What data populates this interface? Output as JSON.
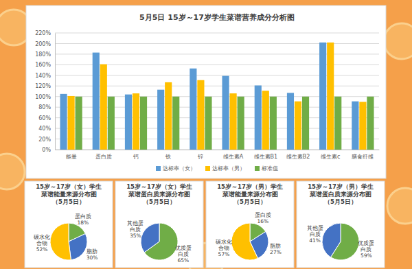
{
  "chart_data": [
    {
      "type": "bar",
      "title": "5月5日 15岁～17岁学生菜谱营养成分分析图",
      "categories": [
        "能量",
        "蛋白质",
        "钙",
        "铁",
        "锌",
        "维生素A",
        "维生素B1",
        "维生素B2",
        "维生素c",
        "膳食纤维"
      ],
      "series": [
        {
          "name": "达标率（女）",
          "color": "#5b9bd5",
          "values": [
            105,
            183,
            104,
            113,
            153,
            139,
            121,
            107,
            202,
            91
          ]
        },
        {
          "name": "达标率（男）",
          "color": "#ffc000",
          "values": [
            101,
            161,
            106,
            127,
            131,
            106,
            111,
            91,
            202,
            90
          ]
        },
        {
          "name": "标准值",
          "color": "#70ad47",
          "values": [
            100,
            100,
            100,
            100,
            100,
            100,
            100,
            100,
            100,
            100
          ]
        }
      ],
      "ylim": [
        0,
        220
      ],
      "yticks": [
        {
          "value": 0,
          "label": "0%"
        },
        {
          "value": 20,
          "label": "20%"
        },
        {
          "value": 40,
          "label": "40%"
        },
        {
          "value": 60,
          "label": "60%"
        },
        {
          "value": 80,
          "label": "80%"
        },
        {
          "value": 100,
          "label": "100%"
        },
        {
          "value": 120,
          "label": "120%"
        },
        {
          "value": 140,
          "label": "140%"
        },
        {
          "value": 160,
          "label": "160%"
        },
        {
          "value": 180,
          "label": "180%"
        },
        {
          "value": 200,
          "label": "200%"
        },
        {
          "value": 220,
          "label": "220%"
        }
      ],
      "grid": true,
      "legend": "bottom"
    },
    {
      "type": "pie",
      "title": "15岁～17岁（女）学生\n菜谱能量来源分布图\n（5月5日）",
      "categories": [
        "蛋白质",
        "脂肪",
        "碳水化合物"
      ],
      "values": [
        18,
        30,
        52
      ],
      "value_labels": [
        "18%",
        "30%",
        "52%"
      ],
      "colors": [
        "#70ad47",
        "#4472c4",
        "#ffc000"
      ],
      "data_labels": true
    },
    {
      "type": "pie",
      "title": "15岁～17岁（女）学生\n菜谱蛋白质来源分布图\n（5月5日）",
      "categories": [
        "优质蛋白质",
        "其他蛋白质"
      ],
      "values": [
        65,
        35
      ],
      "value_labels": [
        "65%",
        "35%"
      ],
      "colors": [
        "#70ad47",
        "#4472c4"
      ],
      "data_labels": true
    },
    {
      "type": "pie",
      "title": "15岁～17岁（男）学生\n菜谱能量来源分布图\n（5月5日）",
      "categories": [
        "蛋白质",
        "脂肪",
        "碳水化合物"
      ],
      "values": [
        16,
        27,
        57
      ],
      "value_labels": [
        "16%",
        "27%",
        "57%"
      ],
      "colors": [
        "#70ad47",
        "#4472c4",
        "#ffc000"
      ],
      "data_labels": true
    },
    {
      "type": "pie",
      "title": "15岁～17岁（男）学生\n菜谱蛋白质来源分布图\n（5月5日）",
      "categories": [
        "优质蛋白质",
        "其他蛋白质"
      ],
      "values": [
        59,
        41
      ],
      "value_labels": [
        "59%",
        "41%"
      ],
      "colors": [
        "#70ad47",
        "#4472c4"
      ],
      "data_labels": true
    }
  ]
}
